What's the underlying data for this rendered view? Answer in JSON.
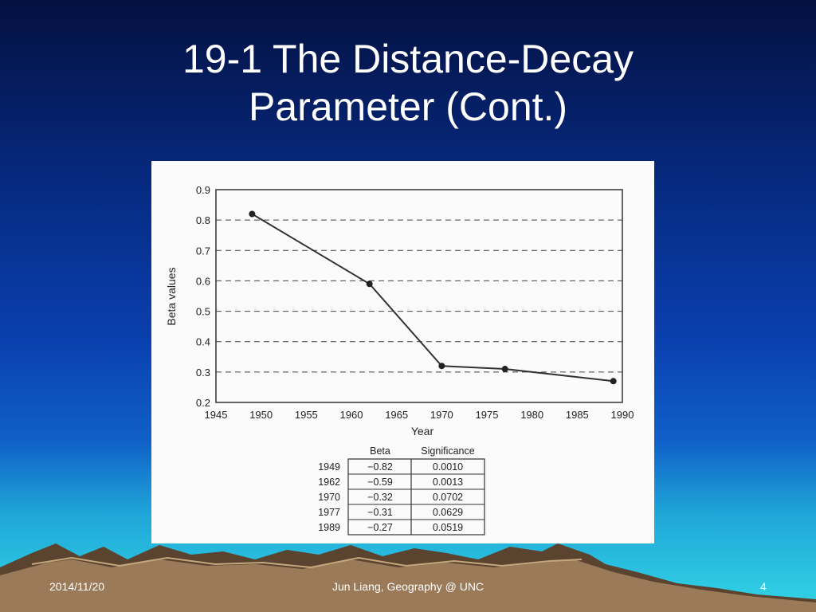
{
  "slide": {
    "title_line1": "19-1 The Distance-Decay",
    "title_line2": "Parameter (Cont.)"
  },
  "footer": {
    "date": "2014/11/20",
    "author": "Jun Liang, Geography @ UNC",
    "page": "4"
  },
  "chart_data": {
    "type": "line",
    "xlabel": "Year",
    "ylabel": "Beta values",
    "xlim": [
      1945,
      1990
    ],
    "ylim": [
      0.2,
      0.9
    ],
    "x_ticks": [
      1945,
      1950,
      1955,
      1960,
      1965,
      1970,
      1975,
      1980,
      1985,
      1990
    ],
    "y_ticks": [
      "0.2",
      "0.3",
      "0.4",
      "0.5",
      "0.6",
      "0.7",
      "0.8",
      "0.9"
    ],
    "grid": "dashed horizontal",
    "series": [
      {
        "x": [
          1949,
          1962,
          1970,
          1977,
          1989
        ],
        "y": [
          0.82,
          0.59,
          0.32,
          0.31,
          0.27
        ]
      }
    ],
    "table": {
      "headers": [
        "",
        "Beta",
        "Significance"
      ],
      "rows": [
        [
          "1949",
          "−0.82",
          "0.0010"
        ],
        [
          "1962",
          "−0.59",
          "0.0013"
        ],
        [
          "1970",
          "−0.32",
          "0.0702"
        ],
        [
          "1977",
          "−0.31",
          "0.0629"
        ],
        [
          "1989",
          "−0.27",
          "0.0519"
        ]
      ]
    }
  }
}
